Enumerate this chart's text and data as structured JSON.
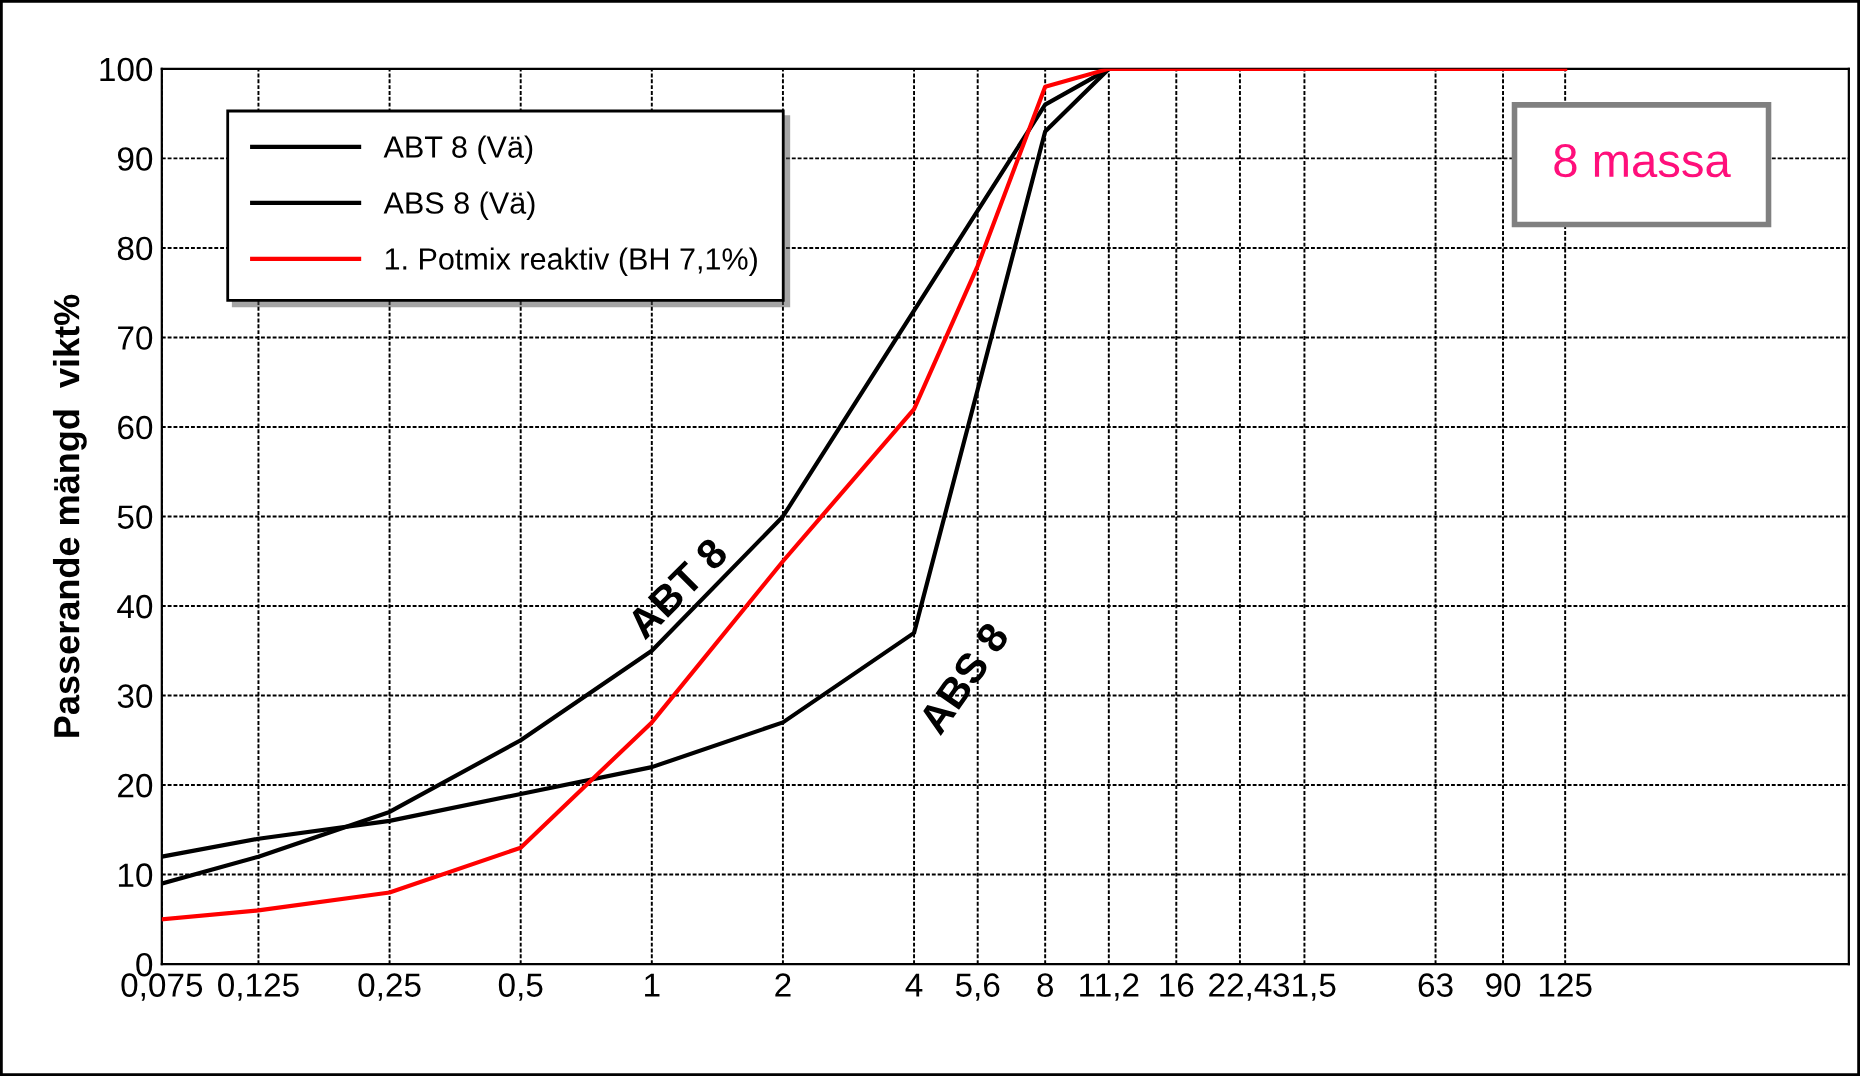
{
  "chart_data": {
    "type": "line",
    "ylabel": "Passerande mängd  vikt%",
    "xlim": [
      0.075,
      560
    ],
    "log": "x",
    "xticks": [
      {
        "value": 0.075,
        "label": "0,075"
      },
      {
        "value": 0.125,
        "label": "0,125"
      },
      {
        "value": 0.25,
        "label": "0,25"
      },
      {
        "value": 0.5,
        "label": "0,5"
      },
      1,
      2,
      4,
      {
        "value": 5.6,
        "label": "5,6"
      },
      8,
      {
        "value": 11.2,
        "label": "11,2"
      },
      16,
      {
        "value": 22.4,
        "label": "22,4"
      },
      {
        "value": 31.5,
        "label": "31,5"
      },
      63,
      90,
      125
    ],
    "ylim": [
      0,
      100
    ],
    "yticks": [
      0,
      10,
      20,
      30,
      40,
      50,
      60,
      70,
      80,
      90,
      100
    ],
    "grid": true,
    "legend": "top left",
    "marker": "none",
    "line_style": "solid",
    "series": [
      {
        "name": "ABT 8 (Vä)",
        "color": "#000000",
        "x": [
          0.075,
          0.125,
          0.25,
          0.5,
          1,
          2,
          4,
          8,
          11.2
        ],
        "values": [
          9,
          12,
          17,
          25,
          35,
          50,
          73,
          96,
          100
        ]
      },
      {
        "name": "ABS 8 (Vä)",
        "color": "#000000",
        "x": [
          0.075,
          0.125,
          0.25,
          0.5,
          1,
          2,
          4,
          8,
          11.2
        ],
        "values": [
          12,
          14,
          16,
          19,
          22,
          27,
          37,
          93,
          100
        ]
      },
      {
        "name": "1. Potmix reaktiv (BH 7,1%)",
        "color": "#ff0000",
        "x": [
          0.075,
          0.125,
          0.25,
          0.5,
          1,
          2,
          4,
          5.6,
          8,
          11.2,
          125
        ],
        "values": [
          5,
          6,
          8,
          13,
          27,
          45,
          62,
          78,
          98,
          100,
          100
        ]
      }
    ],
    "annotations": [
      "ABT 8",
      "ABS 8",
      "8 massa"
    ]
  }
}
